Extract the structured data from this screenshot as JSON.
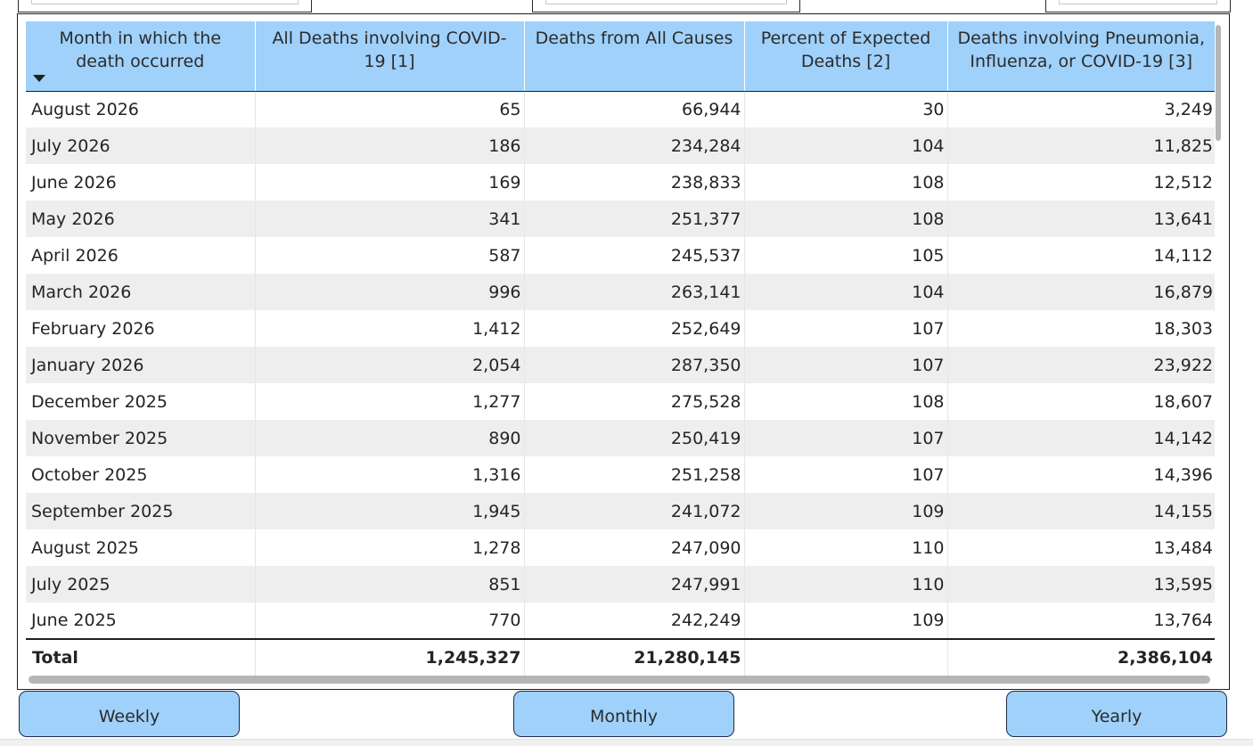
{
  "table": {
    "headers": [
      "Month in which the death occurred",
      "All Deaths involving COVID-19 [1]",
      "Deaths from All Causes",
      "Percent of Expected Deaths [2]",
      "Deaths involving Pneumonia, Influenza, or COVID-19 [3]"
    ],
    "sort_icon": "sort-descending-icon",
    "rows": [
      [
        "August 2026",
        "65",
        "66,944",
        "30",
        "3,249"
      ],
      [
        "July 2026",
        "186",
        "234,284",
        "104",
        "11,825"
      ],
      [
        "June 2026",
        "169",
        "238,833",
        "108",
        "12,512"
      ],
      [
        "May 2026",
        "341",
        "251,377",
        "108",
        "13,641"
      ],
      [
        "April 2026",
        "587",
        "245,537",
        "105",
        "14,112"
      ],
      [
        "March 2026",
        "996",
        "263,141",
        "104",
        "16,879"
      ],
      [
        "February 2026",
        "1,412",
        "252,649",
        "107",
        "18,303"
      ],
      [
        "January 2026",
        "2,054",
        "287,350",
        "107",
        "23,922"
      ],
      [
        "December 2025",
        "1,277",
        "275,528",
        "108",
        "18,607"
      ],
      [
        "November 2025",
        "890",
        "250,419",
        "107",
        "14,142"
      ],
      [
        "October 2025",
        "1,316",
        "251,258",
        "107",
        "14,396"
      ],
      [
        "September 2025",
        "1,945",
        "241,072",
        "109",
        "14,155"
      ],
      [
        "August 2025",
        "1,278",
        "247,090",
        "110",
        "13,484"
      ],
      [
        "July 2025",
        "851",
        "247,991",
        "110",
        "13,595"
      ],
      [
        "June 2025",
        "770",
        "242,249",
        "109",
        "13,764"
      ]
    ],
    "total": [
      "Total",
      "1,245,327",
      "21,280,145",
      "",
      "2,386,104"
    ]
  },
  "buttons": {
    "weekly": "Weekly",
    "monthly": "Monthly",
    "yearly": "Yearly"
  },
  "colors": {
    "header_bg": "#9fd1fb",
    "button_bg": "#9fd1fb",
    "stripe": "#eeeeee"
  }
}
